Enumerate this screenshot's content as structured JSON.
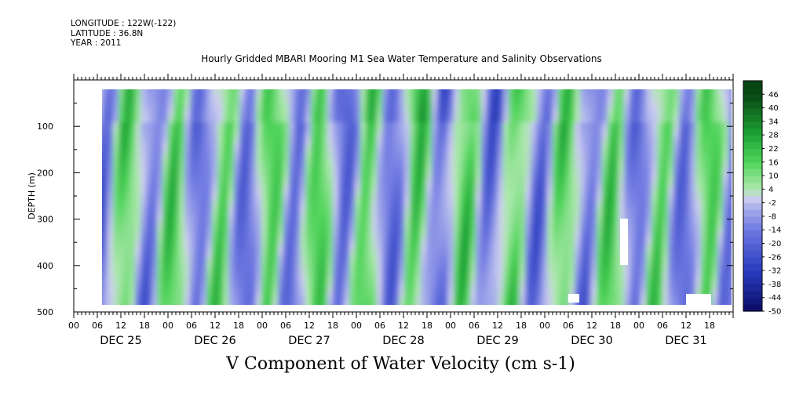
{
  "header": {
    "longitude": "LONGITUDE : 122W(-122)",
    "latitude": "LATITUDE : 36.8N",
    "year": "YEAR : 2011"
  },
  "chart_data": {
    "type": "heatmap",
    "title": "Hourly Gridded MBARI Mooring M1 Sea Water Temperature and Salinity Observations",
    "xlabel": "V Component of Water Velocity (cm s-1)",
    "ylabel": "DEPTH (m)",
    "ylim": [
      500,
      0
    ],
    "y_ticks": [
      100,
      200,
      300,
      400,
      500
    ],
    "x_hour_ticks": [
      "00",
      "06",
      "12",
      "18",
      "00",
      "06",
      "12",
      "18",
      "00",
      "06",
      "12",
      "18",
      "00",
      "06",
      "12",
      "18",
      "00",
      "06",
      "12",
      "18",
      "00",
      "06",
      "12",
      "18",
      "00",
      "06",
      "12",
      "18"
    ],
    "x_day_labels": [
      "DEC 25",
      "DEC 26",
      "DEC 27",
      "DEC 28",
      "DEC 29",
      "DEC 30",
      "DEC 31"
    ],
    "colorbar_labels": [
      "46",
      "40",
      "34",
      "28",
      "22",
      "16",
      "10",
      "4",
      "-2",
      "-8",
      "-14",
      "-20",
      "-26",
      "-32",
      "-38",
      "-44",
      "-50"
    ],
    "colorbar_range": [
      -50,
      52
    ],
    "colorbar_step": 3,
    "colors": {
      "strong_negative": "#0a0a6a",
      "negative": "#7f86e0",
      "weak_negative": "#b7bde8",
      "weak_positive": "#a9e6a9",
      "positive": "#4dd24d",
      "strong_positive": "#0b4d12"
    },
    "data_coverage": {
      "start": "DEC 25 07:00",
      "end": "DEC 31 23:00",
      "depth_range_m": [
        20,
        480
      ]
    },
    "pattern": "Alternating vertical bands of positive (green) and negative (blue/purple) velocity, roughly every 6 hours; values mostly between -26 and 22 cm/s."
  }
}
